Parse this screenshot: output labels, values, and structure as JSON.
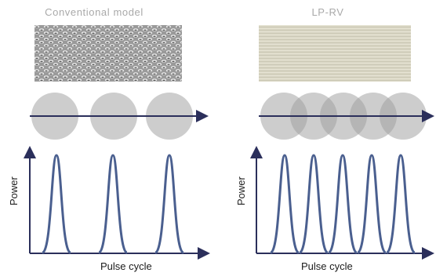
{
  "panels": [
    {
      "title": "Conventional model",
      "pulse_count": 3,
      "y_axis_label": "Power",
      "x_axis_label": "Pulse cycle",
      "texture": "coarse-hatch"
    },
    {
      "title": "LP-RV",
      "pulse_count": 5,
      "y_axis_label": "Power",
      "x_axis_label": "Pulse cycle",
      "texture": "fine-smooth"
    }
  ],
  "colors": {
    "title": "#a9a9a9",
    "arrow": "#2b2f5b",
    "pulse": "#4a5f8f",
    "circle": "#c9c9c9",
    "circle_overlap": "#b3b3b3"
  }
}
